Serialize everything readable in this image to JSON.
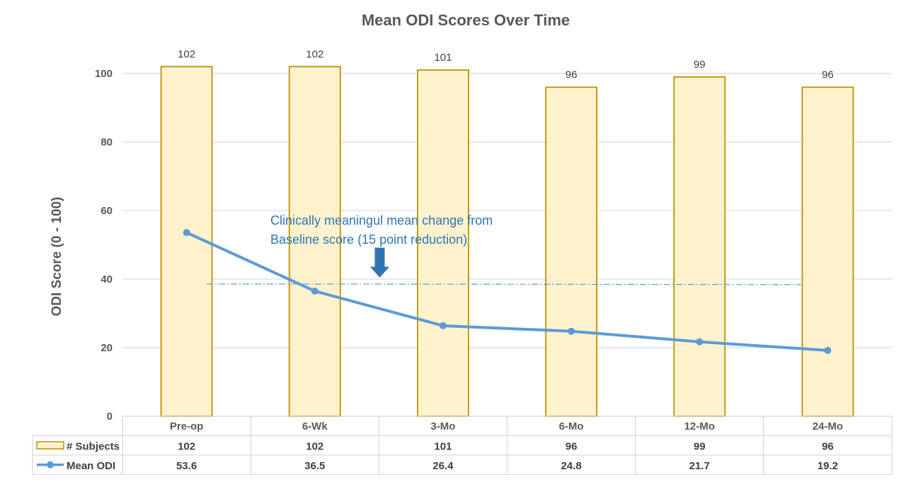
{
  "chart_data": {
    "type": "bar",
    "title": "Mean ODI Scores Over Time",
    "ylabel": "ODI Score (0 - 100)",
    "xlabel": "",
    "ylim": [
      0,
      100
    ],
    "yticks": [
      0,
      20,
      40,
      60,
      80,
      100
    ],
    "grid": true,
    "categories": [
      "Pre-op",
      "6-Wk",
      "3-Mo",
      "6-Mo",
      "12-Mo",
      "24-Mo"
    ],
    "series": [
      {
        "name": "# Subjects",
        "kind": "bar",
        "values": [
          102,
          102,
          101,
          96,
          99,
          96
        ],
        "color": "#FFF2CC",
        "border": "#BF9000"
      },
      {
        "name": "Mean ODI",
        "kind": "line",
        "values": [
          53.6,
          36.5,
          26.4,
          24.8,
          21.7,
          19.2
        ],
        "color": "#5B9BD5"
      }
    ],
    "bar_labels": [
      "102",
      "102",
      "101",
      "96",
      "99",
      "96"
    ],
    "table_values": [
      [
        "102",
        "102",
        "101",
        "96",
        "99",
        "96"
      ],
      [
        "53.6",
        "36.5",
        "26.4",
        "24.8",
        "21.7",
        "19.2"
      ]
    ],
    "threshold": {
      "value": 38.6,
      "color": "#5B9BD5"
    },
    "annotation": {
      "lines": [
        "Clinically meaningul mean change from",
        "Baseline  score (15 point reduction)"
      ],
      "color": "#2E75B6"
    },
    "legend_placement": "data-table"
  }
}
